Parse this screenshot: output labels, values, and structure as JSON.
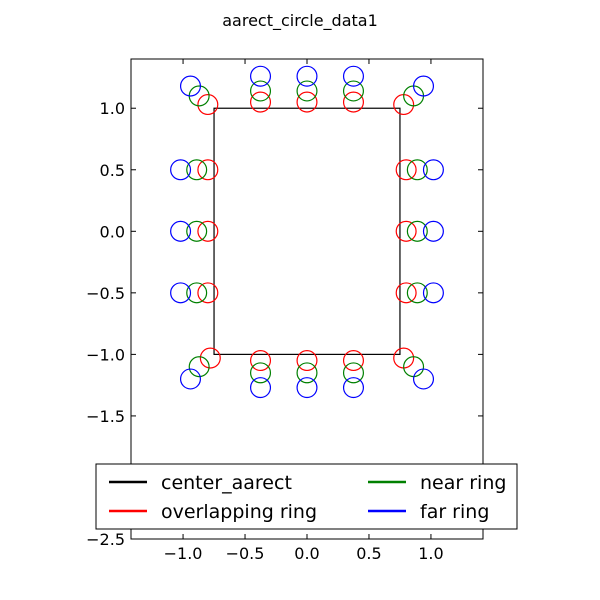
{
  "chart_data": {
    "type": "scatter",
    "title": "aarect_circle_data1",
    "xlabel": "",
    "ylabel": "",
    "xlim": [
      -1.42,
      1.42
    ],
    "ylim": [
      -2.5,
      1.4
    ],
    "xticks": [
      -1.0,
      -0.5,
      0.0,
      0.5,
      1.0
    ],
    "xtick_labels": [
      "−1.0",
      "−0.5",
      "0.0",
      "0.5",
      "1.0"
    ],
    "yticks": [
      1.0,
      0.5,
      0.0,
      -0.5,
      -1.0,
      -1.5,
      -2.5
    ],
    "ytick_labels": [
      "1.0",
      "0.5",
      "0.0",
      "−0.5",
      "−1.0",
      "−1.5",
      "−2.5"
    ],
    "grid": false,
    "legend_position": "lower center",
    "center_aarect": {
      "name": "center_aarect",
      "color": "#000000",
      "xmin": -0.75,
      "xmax": 0.75,
      "ymin": -1.0,
      "ymax": 1.0
    },
    "circle_radius": 0.08,
    "series": [
      {
        "name": "overlapping ring",
        "color": "#ff0000",
        "points": [
          [
            -0.8,
            1.03
          ],
          [
            -0.375,
            1.05
          ],
          [
            0.0,
            1.05
          ],
          [
            0.375,
            1.05
          ],
          [
            0.78,
            1.03
          ],
          [
            -0.8,
            0.5
          ],
          [
            0.8,
            0.5
          ],
          [
            -0.8,
            0.0
          ],
          [
            0.8,
            0.0
          ],
          [
            -0.8,
            -0.5
          ],
          [
            0.8,
            -0.5
          ],
          [
            -0.78,
            -1.03
          ],
          [
            -0.375,
            -1.05
          ],
          [
            0.0,
            -1.05
          ],
          [
            0.375,
            -1.05
          ],
          [
            0.78,
            -1.03
          ]
        ]
      },
      {
        "name": "near ring",
        "color": "#008000",
        "points": [
          [
            -0.87,
            1.1
          ],
          [
            -0.375,
            1.14
          ],
          [
            0.0,
            1.14
          ],
          [
            0.375,
            1.14
          ],
          [
            0.86,
            1.1
          ],
          [
            -0.89,
            0.5
          ],
          [
            0.89,
            0.5
          ],
          [
            -0.89,
            0.0
          ],
          [
            0.89,
            0.0
          ],
          [
            -0.89,
            -0.5
          ],
          [
            0.89,
            -0.5
          ],
          [
            -0.87,
            -1.1
          ],
          [
            -0.375,
            -1.15
          ],
          [
            0.0,
            -1.15
          ],
          [
            0.375,
            -1.15
          ],
          [
            0.86,
            -1.1
          ]
        ]
      },
      {
        "name": "far ring",
        "color": "#0000ff",
        "points": [
          [
            -0.94,
            1.18
          ],
          [
            -0.375,
            1.26
          ],
          [
            0.0,
            1.26
          ],
          [
            0.375,
            1.26
          ],
          [
            0.94,
            1.18
          ],
          [
            -1.02,
            0.5
          ],
          [
            1.02,
            0.5
          ],
          [
            -1.02,
            0.0
          ],
          [
            1.02,
            0.0
          ],
          [
            -1.02,
            -0.5
          ],
          [
            1.02,
            -0.5
          ],
          [
            -0.94,
            -1.2
          ],
          [
            -0.375,
            -1.27
          ],
          [
            0.0,
            -1.27
          ],
          [
            0.375,
            -1.27
          ],
          [
            0.94,
            -1.2
          ]
        ]
      }
    ],
    "legend": [
      {
        "label": "center_aarect",
        "color": "#000000"
      },
      {
        "label": "near ring",
        "color": "#008000"
      },
      {
        "label": "overlapping ring",
        "color": "#ff0000"
      },
      {
        "label": "far ring",
        "color": "#0000ff"
      }
    ]
  }
}
